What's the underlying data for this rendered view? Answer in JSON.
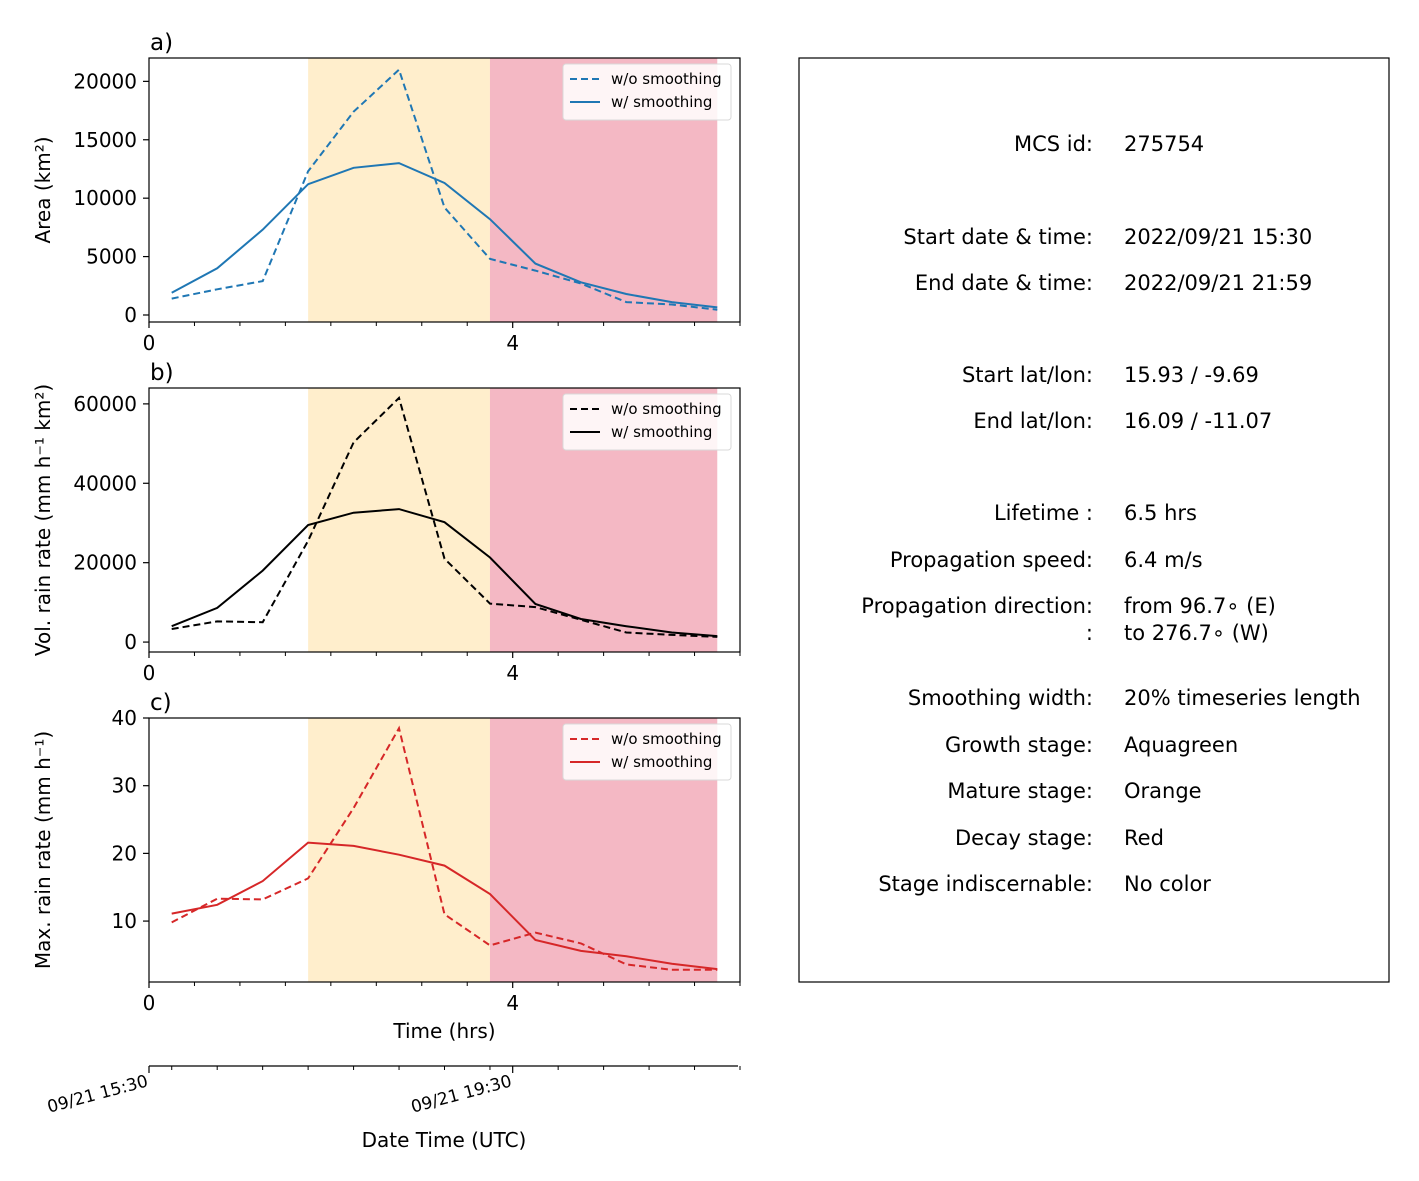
{
  "stage_colors": {
    "growth": "#7fffd4",
    "mature": "#ffeecc",
    "decay": "#f4b8c4"
  },
  "chart_data": [
    {
      "type": "line",
      "panel_label": "a)",
      "ylabel": "Area  (km²)",
      "xlim": [
        0,
        6.5
      ],
      "ylim": [
        -600,
        22000
      ],
      "yticks": [
        0,
        5000,
        10000,
        15000,
        20000
      ],
      "ytick_labels": [
        "0",
        "5000",
        "10000",
        "15000",
        "20000"
      ],
      "xticks": [
        0,
        4
      ],
      "xtick_labels": [
        "0",
        "4"
      ],
      "minor_xticks": [
        0.5,
        1,
        1.5,
        2,
        2.5,
        3,
        3.5,
        4.5,
        5,
        5.5,
        6,
        6.5
      ],
      "stage_spans": [
        {
          "stage": "mature",
          "start": 1.75,
          "end": 3.75
        },
        {
          "stage": "decay",
          "start": 3.75,
          "end": 6.25
        }
      ],
      "legend": {
        "position": "top-right"
      },
      "series": [
        {
          "name": "w/o smoothing",
          "color": "#1f77b4",
          "dashed": true,
          "x": [
            0.25,
            0.75,
            1.25,
            1.75,
            2.25,
            2.75,
            3.25,
            3.75,
            4.25,
            4.75,
            5.25,
            5.75,
            6.25
          ],
          "y": [
            1400,
            2200,
            2900,
            12300,
            17400,
            21000,
            9200,
            4800,
            3800,
            2700,
            1100,
            900,
            450
          ]
        },
        {
          "name": "w/ smoothing",
          "color": "#1f77b4",
          "dashed": false,
          "x": [
            0.25,
            0.75,
            1.25,
            1.75,
            2.25,
            2.75,
            3.25,
            3.75,
            4.25,
            4.75,
            5.25,
            5.75,
            6.25
          ],
          "y": [
            1900,
            4000,
            7300,
            11200,
            12600,
            13000,
            11300,
            8200,
            4400,
            2800,
            1800,
            1100,
            650
          ]
        }
      ]
    },
    {
      "type": "line",
      "panel_label": "b)",
      "ylabel": "Vol. rain rate (mm h⁻¹ km²)",
      "xlim": [
        0,
        6.5
      ],
      "ylim": [
        -2500,
        64000
      ],
      "yticks": [
        0,
        20000,
        40000,
        60000
      ],
      "ytick_labels": [
        "0",
        "20000",
        "40000",
        "60000"
      ],
      "xticks": [
        0,
        4
      ],
      "xtick_labels": [
        "0",
        "4"
      ],
      "minor_xticks": [
        0.5,
        1,
        1.5,
        2,
        2.5,
        3,
        3.5,
        4.5,
        5,
        5.5,
        6,
        6.5
      ],
      "stage_spans": [
        {
          "stage": "mature",
          "start": 1.75,
          "end": 3.75
        },
        {
          "stage": "decay",
          "start": 3.75,
          "end": 6.25
        }
      ],
      "legend": {
        "position": "top-right"
      },
      "series": [
        {
          "name": "w/o smoothing",
          "color": "#000000",
          "dashed": true,
          "x": [
            0.25,
            0.75,
            1.25,
            1.75,
            2.25,
            2.75,
            3.25,
            3.75,
            4.25,
            4.75,
            5.25,
            5.75,
            6.25
          ],
          "y": [
            3300,
            5200,
            5000,
            25500,
            50300,
            61500,
            21000,
            9700,
            8800,
            5600,
            2400,
            1800,
            1300
          ]
        },
        {
          "name": "w/ smoothing",
          "color": "#000000",
          "dashed": false,
          "x": [
            0.25,
            0.75,
            1.25,
            1.75,
            2.25,
            2.75,
            3.25,
            3.75,
            4.25,
            4.75,
            5.25,
            5.75,
            6.25
          ],
          "y": [
            4000,
            8600,
            18000,
            29500,
            32600,
            33500,
            30200,
            21300,
            9600,
            5800,
            4000,
            2400,
            1500
          ]
        }
      ]
    },
    {
      "type": "line",
      "panel_label": "c)",
      "ylabel": "Max. rain rate  (mm h⁻¹)",
      "xlabel": "Time (hrs)",
      "xlim": [
        0,
        6.5
      ],
      "ylim": [
        1,
        40
      ],
      "yticks": [
        10,
        20,
        30,
        40
      ],
      "ytick_labels": [
        "10",
        "20",
        "30",
        "40"
      ],
      "xticks": [
        0,
        4
      ],
      "xtick_labels": [
        "0",
        "4"
      ],
      "minor_xticks": [
        0.5,
        1,
        1.5,
        2,
        2.5,
        3,
        3.5,
        4.5,
        5,
        5.5,
        6,
        6.5
      ],
      "stage_spans": [
        {
          "stage": "mature",
          "start": 1.75,
          "end": 3.75
        },
        {
          "stage": "decay",
          "start": 3.75,
          "end": 6.25
        }
      ],
      "legend": {
        "position": "top-right"
      },
      "series": [
        {
          "name": "w/o smoothing",
          "color": "#d62728",
          "dashed": true,
          "x": [
            0.25,
            0.75,
            1.25,
            1.75,
            2.25,
            2.75,
            3.25,
            3.75,
            4.25,
            4.75,
            5.25,
            5.75,
            6.25
          ],
          "y": [
            9.8,
            13.3,
            13.2,
            16.3,
            26.7,
            38.5,
            11.0,
            6.4,
            8.3,
            6.7,
            3.6,
            2.8,
            2.8
          ]
        },
        {
          "name": "w/ smoothing",
          "color": "#d62728",
          "dashed": false,
          "x": [
            0.25,
            0.75,
            1.25,
            1.75,
            2.25,
            2.75,
            3.25,
            3.75,
            4.25,
            4.75,
            5.25,
            5.75,
            6.25
          ],
          "y": [
            11.1,
            12.4,
            15.9,
            21.6,
            21.1,
            19.8,
            18.2,
            14.0,
            7.2,
            5.6,
            4.8,
            3.7,
            2.9
          ]
        }
      ]
    }
  ],
  "datetime_axis": {
    "xlabel": "Date Time (UTC)",
    "ticks": [
      {
        "x": 0,
        "label": "09/21 15:30"
      },
      {
        "x": 4,
        "label": "09/21 19:30"
      }
    ],
    "minor_ticks": [
      0.25,
      0.75,
      1.25,
      1.75,
      2.25,
      2.75,
      3.25,
      3.75,
      4.5,
      5.0,
      5.5,
      6.0,
      6.5
    ]
  },
  "info_panel": {
    "rows": [
      {
        "label": "MCS id:",
        "value": "275754"
      },
      {
        "label": "Start date & time:",
        "value": "2022/09/21 15:30"
      },
      {
        "label": "End date & time:",
        "value": "2022/09/21 21:59"
      },
      {
        "label": "Start lat/lon:",
        "value": "15.93 / -9.69"
      },
      {
        "label": "End lat/lon:",
        "value": "16.09 / -11.07"
      },
      {
        "label": "Lifetime :",
        "value": "6.5 hrs"
      },
      {
        "label": "Propagation speed:",
        "value": "6.4 m/s"
      },
      {
        "label": "Propagation direction:",
        "value": "from  96.7∘ (E)"
      },
      {
        "label": ":",
        "value": "to   276.7∘ (W)"
      },
      {
        "label": "Smoothing width:",
        "value": "20% timeseries length"
      },
      {
        "label": "Growth stage:",
        "value": "Aquagreen"
      },
      {
        "label": "Mature stage:",
        "value": "Orange"
      },
      {
        "label": "Decay stage:",
        "value": "Red"
      },
      {
        "label": "Stage indiscernable:",
        "value": "No color"
      }
    ]
  }
}
